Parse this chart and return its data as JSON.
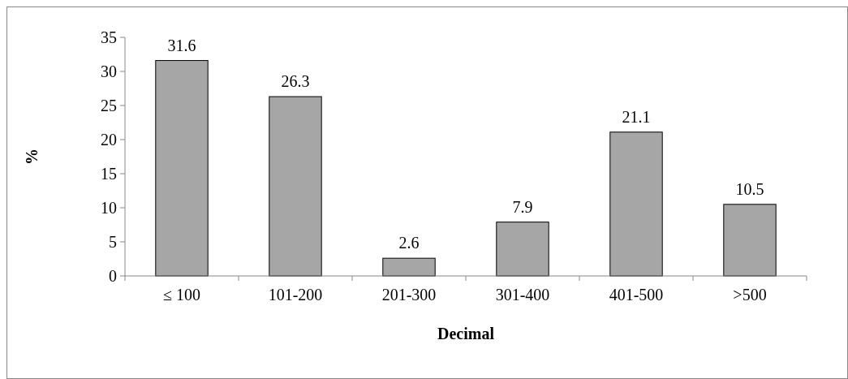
{
  "chart_data": {
    "type": "bar",
    "xlabel": "Decimal",
    "ylabel": "%",
    "categories": [
      "≤ 100",
      "101-200",
      "201-300",
      "301-400",
      "401-500",
      ">500"
    ],
    "values": [
      31.6,
      26.3,
      2.6,
      7.9,
      21.1,
      10.5
    ],
    "color": "#a6a6a6",
    "ylim": [
      0,
      35
    ],
    "yticks": [
      0,
      5,
      10,
      15,
      20,
      25,
      30,
      35
    ],
    "grid": false,
    "data_labels": true
  }
}
